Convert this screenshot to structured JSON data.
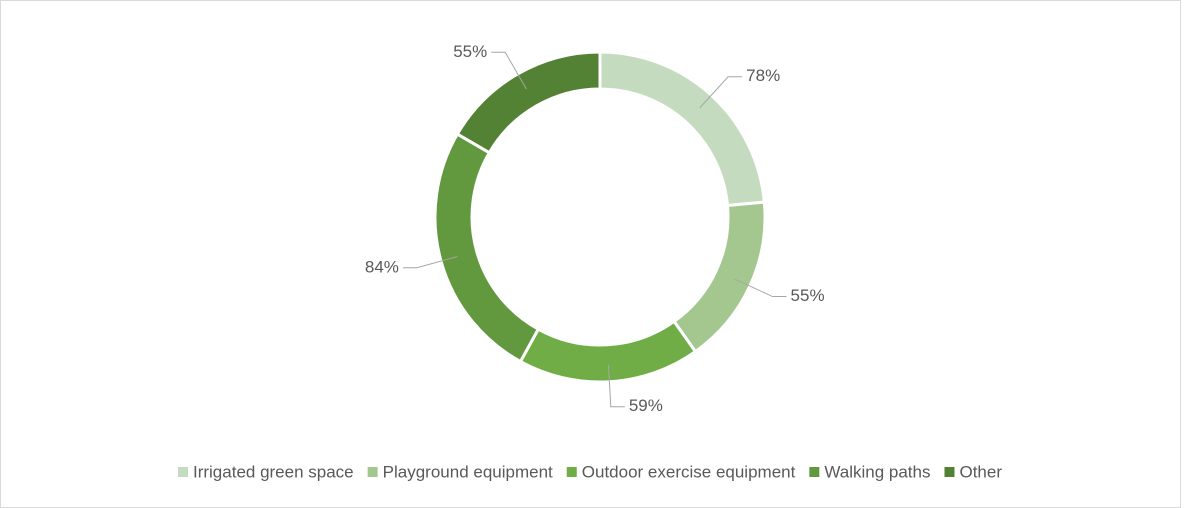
{
  "chart_data": {
    "type": "donut",
    "categories": [
      "Irrigated green space",
      "Playground equipment",
      "Outdoor exercise equipment",
      "Walking paths",
      "Other"
    ],
    "values": [
      78,
      55,
      59,
      84,
      55
    ],
    "value_labels": [
      "78%",
      "55%",
      "59%",
      "84%",
      "55%"
    ],
    "colors": [
      "#c5dbbf",
      "#a3c78f",
      "#70ad47",
      "#62993e",
      "#548235"
    ],
    "legend": "bottom"
  }
}
